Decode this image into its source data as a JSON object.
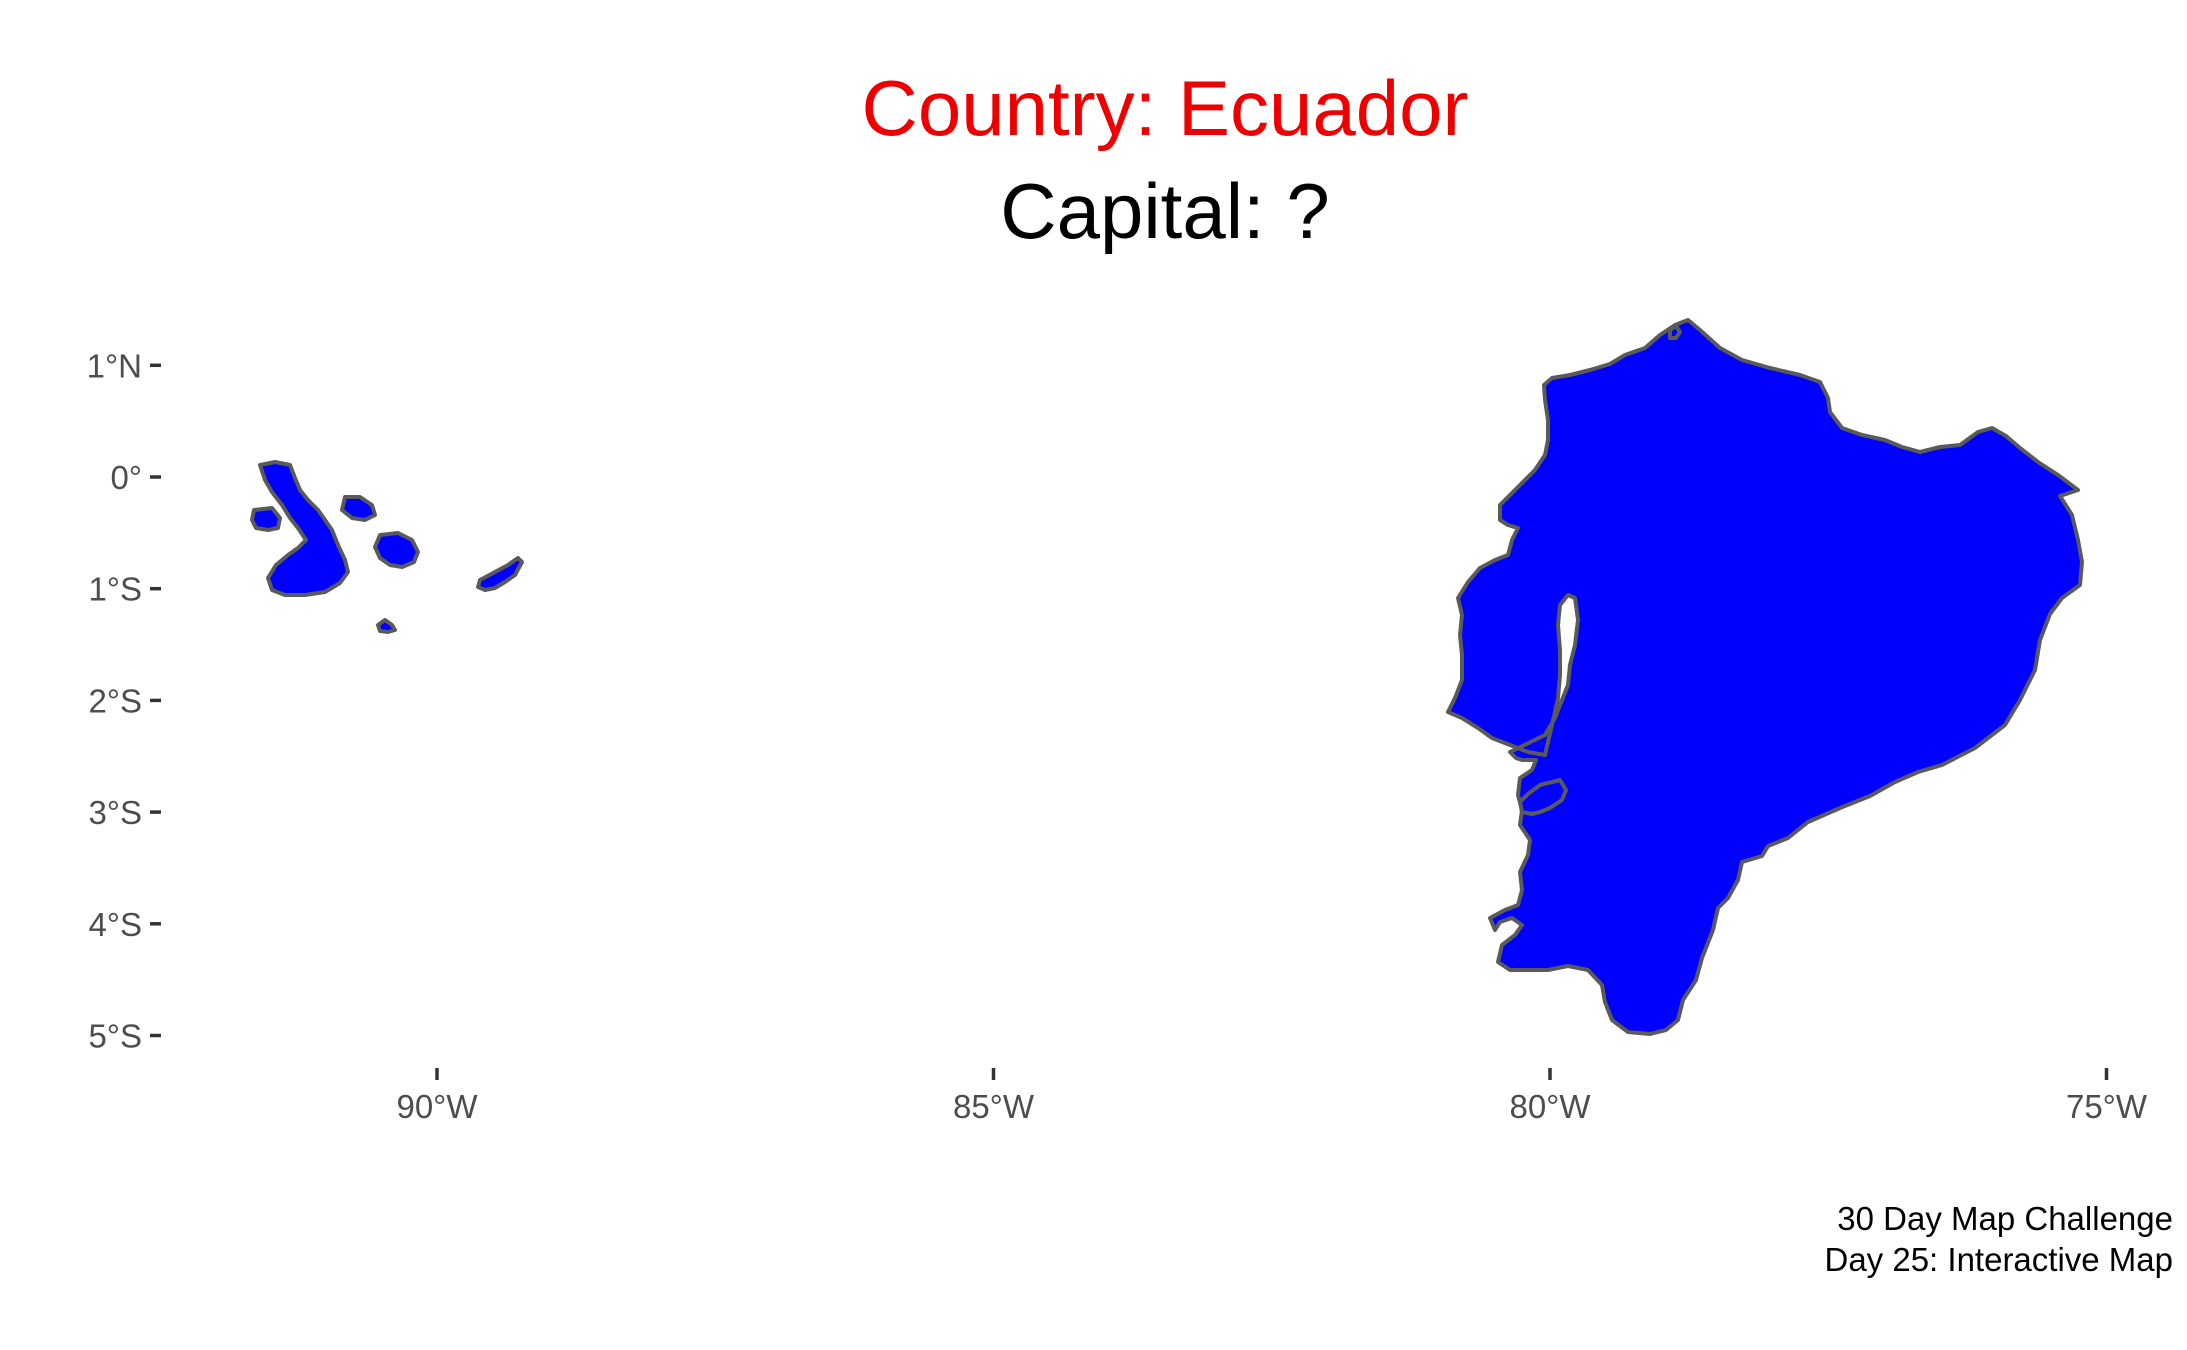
{
  "title": {
    "country_line": "Country: Ecuador",
    "capital_line": "Capital: ?"
  },
  "caption": {
    "line1": "30 Day Map Challenge",
    "line2": "Day 25: Interactive Map"
  },
  "map": {
    "fill_color": "#0000ff",
    "title_color": "#ee0000",
    "latitude_ticks": [
      {
        "label": "1°N",
        "lat": 1
      },
      {
        "label": "0°",
        "lat": 0
      },
      {
        "label": "1°S",
        "lat": -1
      },
      {
        "label": "2°S",
        "lat": -2
      },
      {
        "label": "3°S",
        "lat": -3
      },
      {
        "label": "4°S",
        "lat": -4
      },
      {
        "label": "5°S",
        "lat": -5
      }
    ],
    "longitude_ticks": [
      {
        "label": "90°W",
        "lon": -90
      },
      {
        "label": "85°W",
        "lon": -85
      },
      {
        "label": "80°W",
        "lon": -80
      },
      {
        "label": "75°W",
        "lon": -75
      }
    ]
  }
}
